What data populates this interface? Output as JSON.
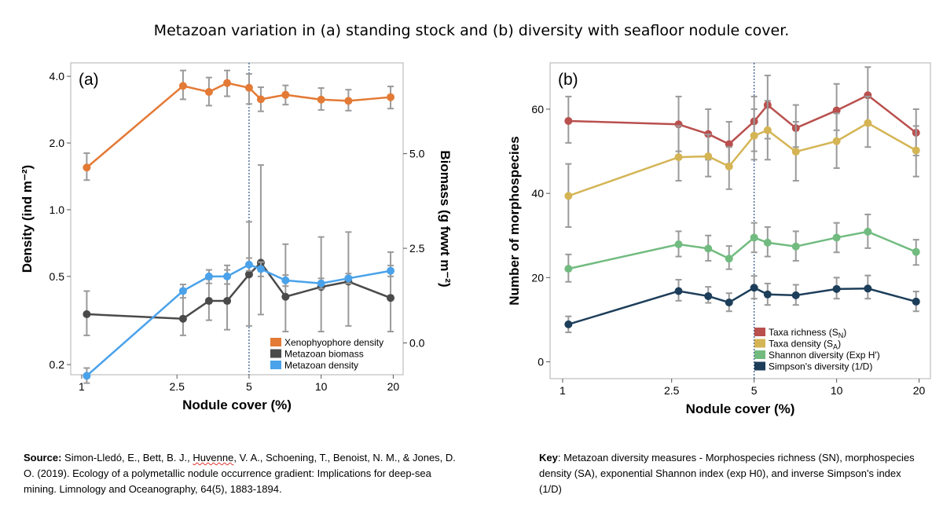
{
  "title": "Metazoan variation in (a) standing stock and (b) diversity with seafloor nodule cover.",
  "chart_data": [
    {
      "type": "line",
      "panel_label": "(a)",
      "xlabel": "Nodule cover (%)",
      "x_scale": "log",
      "xlim": [
        0.9,
        22
      ],
      "x_ticks": [
        1,
        2.5,
        5,
        10,
        20
      ],
      "x_tick_labels": [
        "1",
        "2.5",
        "5",
        "10",
        "20"
      ],
      "ylabel": "Density (ind m⁻²)",
      "y_scale": "log",
      "ylim": [
        0.18,
        4.6
      ],
      "y_ticks": [
        0.2,
        0.5,
        1.0,
        2.0,
        4.0
      ],
      "y_tick_labels": [
        "0.2",
        "0.5",
        "1.0",
        "2.0",
        "4.0"
      ],
      "y2label": "Biomass (g fwwt m⁻²)",
      "y2lim": [
        -0.84,
        7.4
      ],
      "y2_ticks": [
        0,
        2.5,
        5
      ],
      "y2_tick_labels": [
        "0.0",
        "2.5",
        "5.0"
      ],
      "vline_x": 5,
      "legend_position": "bottom-right",
      "series": [
        {
          "name": "Xenophyophore density",
          "color": "#e37a35",
          "axis": "left",
          "x": [
            1.05,
            2.65,
            3.4,
            4.05,
            5,
            5.6,
            7.1,
            10,
            13,
            19.5
          ],
          "y": [
            1.55,
            3.62,
            3.4,
            3.73,
            3.55,
            3.15,
            3.3,
            3.14,
            3.1,
            3.22
          ],
          "err_low": [
            1.36,
            3.15,
            2.95,
            3.25,
            3.0,
            2.78,
            2.98,
            2.82,
            2.8,
            2.86
          ],
          "err_high": [
            1.8,
            4.25,
            3.95,
            4.25,
            4.1,
            3.57,
            3.64,
            3.54,
            3.48,
            3.6
          ]
        },
        {
          "name": "Metazoan biomass",
          "color": "#4a4a4a",
          "axis": "right",
          "x": [
            1.05,
            2.65,
            3.4,
            4.05,
            5,
            5.6,
            7.1,
            10,
            13,
            19.5
          ],
          "y": [
            0.76,
            0.64,
            1.11,
            1.11,
            1.81,
            2.12,
            1.22,
            1.48,
            1.62,
            1.19
          ],
          "err_low": [
            0.2,
            0.2,
            0.6,
            0.35,
            0.45,
            0.75,
            0.3,
            0.3,
            0.45,
            0.3
          ],
          "err_high": [
            1.37,
            1.32,
            1.68,
            2.05,
            3.2,
            4.7,
            2.61,
            2.8,
            2.93,
            2.4
          ]
        },
        {
          "name": "Metazoan density",
          "color": "#4aa2ea",
          "axis": "left",
          "x": [
            1.05,
            2.65,
            3.4,
            4.05,
            5,
            5.6,
            7.1,
            10,
            13,
            19.5
          ],
          "y": [
            0.178,
            0.43,
            0.5,
            0.5,
            0.565,
            0.54,
            0.48,
            0.465,
            0.49,
            0.53
          ],
          "err_low": [
            0.165,
            0.4,
            0.465,
            0.462,
            0.53,
            0.5,
            0.452,
            0.44,
            0.465,
            0.5
          ],
          "err_high": [
            0.193,
            0.46,
            0.535,
            0.535,
            0.605,
            0.58,
            0.507,
            0.49,
            0.515,
            0.56
          ]
        }
      ]
    },
    {
      "type": "line",
      "panel_label": "(b)",
      "xlabel": "Nodule cover (%)",
      "x_scale": "log",
      "xlim": [
        0.9,
        22
      ],
      "x_ticks": [
        1,
        2.5,
        5,
        10,
        20
      ],
      "x_tick_labels": [
        "1",
        "2.5",
        "5",
        "10",
        "20"
      ],
      "ylabel": "Number of morphospecies",
      "y_scale": "linear",
      "ylim": [
        -4,
        71
      ],
      "y_ticks": [
        0,
        20,
        40,
        60
      ],
      "y_tick_labels": [
        "0",
        "20",
        "40",
        "60"
      ],
      "vline_x": 5,
      "legend_position": "bottom-right",
      "series": [
        {
          "name": "Taxa richness (S",
          "sub": "N",
          "suffix": ")",
          "color": "#b9504e",
          "x": [
            1.05,
            2.65,
            3.4,
            4.05,
            5,
            5.6,
            7.1,
            10,
            13,
            19.5
          ],
          "y": [
            57.2,
            56.4,
            54.1,
            51.7,
            57.1,
            61.0,
            55.5,
            59.7,
            63.3,
            54.4
          ],
          "err_low": [
            52,
            50,
            48,
            47,
            50,
            53,
            51,
            55,
            57,
            49
          ],
          "err_high": [
            63,
            63,
            60,
            57,
            63,
            68,
            61,
            66,
            70,
            60
          ]
        },
        {
          "name": "Taxa density (S",
          "sub": "A",
          "suffix": ")",
          "color": "#d4b454",
          "x": [
            1.05,
            2.65,
            3.4,
            4.05,
            5,
            5.6,
            7.1,
            10,
            13,
            19.5
          ],
          "y": [
            39.4,
            48.6,
            48.8,
            46.4,
            53.7,
            55.0,
            49.9,
            52.4,
            56.7,
            50.2
          ],
          "err_low": [
            32,
            43,
            44,
            41,
            48,
            48,
            43,
            46,
            51,
            44
          ],
          "err_high": [
            47,
            56,
            54,
            51,
            60,
            62,
            57,
            59,
            63,
            56
          ]
        },
        {
          "name": "Shannon diversity (Exp H')",
          "color": "#72bb80",
          "x": [
            1.05,
            2.65,
            3.4,
            4.05,
            5,
            5.6,
            7.1,
            10,
            13,
            19.5
          ],
          "y": [
            22.1,
            27.9,
            26.9,
            24.5,
            29.5,
            28.3,
            27.4,
            29.5,
            30.9,
            26.1
          ],
          "err_low": [
            19,
            25,
            24,
            22,
            26,
            25,
            24,
            26,
            27,
            23
          ],
          "err_high": [
            25.5,
            31,
            30,
            27.5,
            33,
            32,
            31,
            33,
            35,
            29
          ]
        },
        {
          "name": "Simpson's diversity (1/D)",
          "color": "#1d3e5a",
          "x": [
            1.05,
            2.65,
            3.4,
            4.05,
            5,
            5.6,
            7.1,
            10,
            13,
            19.5
          ],
          "y": [
            8.9,
            16.8,
            15.6,
            14.1,
            17.6,
            16.0,
            15.8,
            17.3,
            17.4,
            14.3
          ],
          "err_low": [
            7,
            14.5,
            14,
            12,
            15,
            13.5,
            13.5,
            15,
            15,
            12
          ],
          "err_high": [
            10.8,
            19.5,
            17.8,
            16.3,
            20.4,
            18.6,
            18.3,
            20,
            20.5,
            16.7
          ]
        }
      ]
    }
  ],
  "source": {
    "label": "Source:",
    "text_1": " Simon-Lledó, E., Bett, B. J., ",
    "flagged_word": "Huvenne",
    "text_2": ", V. A., Schoening, T., Benoist, N. M., & Jones, D. O. (2019). Ecology of a polymetallic nodule occurrence gradient: Implications for deep-sea mining. Limnology and Oceanography, 64(5), 1883-1894."
  },
  "key": {
    "label": "Key",
    "text": ": Metazoan diversity measures - Morphospecies richness (SN), morphospecies density (SA), exponential Shannon index (exp H0), and inverse Simpson's index (1/D)"
  }
}
